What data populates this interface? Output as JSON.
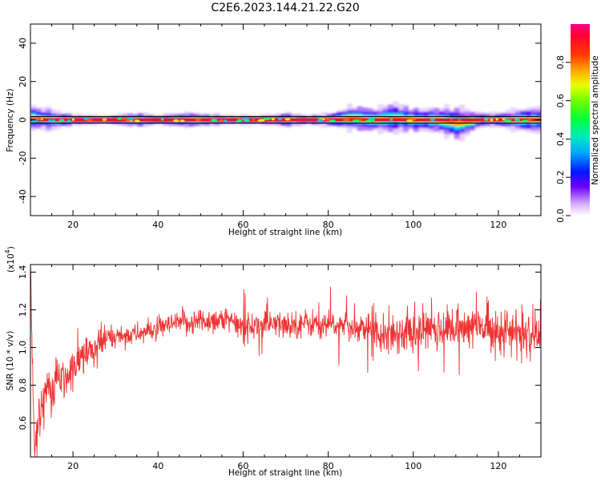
{
  "title": "C2E6.2023.144.21.22.G20",
  "colors": {
    "ridge_red": "#dc1c2e",
    "snr_line": "#ee3333",
    "frame": "#000000",
    "background": "#ffffff"
  },
  "top_panel": {
    "xlabel": "Height of straight line (km)",
    "ylabel": "Frequency (Hz)",
    "xlim": [
      10,
      130
    ],
    "ylim": [
      -50,
      50
    ],
    "xticks": [
      "20",
      "40",
      "60",
      "80",
      "100",
      "120"
    ],
    "xtick_values": [
      20,
      40,
      60,
      80,
      100,
      120
    ],
    "yticks": [
      "40",
      "20",
      "0",
      "-20",
      "-40"
    ],
    "ytick_values": [
      40,
      20,
      0,
      -20,
      -40
    ],
    "colorbar": {
      "label": "Normalized spectral amplitude",
      "ticks": [
        "0.0",
        "0.2",
        "0.4",
        "0.6",
        "0.8"
      ],
      "tick_values": [
        0.0,
        0.2,
        0.4,
        0.6,
        0.8
      ],
      "range": [
        0,
        1
      ]
    }
  },
  "bottom_panel": {
    "xlabel": "Height of straight line (km)",
    "ylabel": "SNR (10 * v/v)",
    "exponent_label": "(x10",
    "exponent_power": "4",
    "exponent_close": ")",
    "xlim": [
      10,
      130
    ],
    "ylim": [
      0.42,
      1.44
    ],
    "xticks": [
      "20",
      "40",
      "60",
      "80",
      "100",
      "120"
    ],
    "xtick_values": [
      20,
      40,
      60,
      80,
      100,
      120
    ],
    "yticks": [
      "1.4",
      "1.2",
      "1.0",
      "0.8",
      "0.6"
    ],
    "ytick_values": [
      1.4,
      1.2,
      1.0,
      0.8,
      0.6
    ]
  },
  "chart_data": [
    {
      "type": "heatmap",
      "title": "C2E6.2023.144.21.22.G20",
      "xlabel": "Height of straight line (km)",
      "ylabel": "Frequency (Hz)",
      "xlim": [
        10,
        130
      ],
      "ylim": [
        -50,
        50
      ],
      "colorbar_label": "Normalized spectral amplitude",
      "description_of_values": "Narrow spectral ridge near 0 Hz across all heights; spreads to about +/-6 Hz near 80-130 km",
      "ridge_x": [
        10,
        15,
        20,
        25,
        30,
        35,
        40,
        45,
        50,
        55,
        60,
        65,
        70,
        75,
        80,
        85,
        90,
        95,
        100,
        105,
        110,
        115,
        120,
        125,
        130
      ],
      "ridge_frequency": [
        1,
        0,
        0,
        0,
        0,
        0,
        0,
        0,
        0,
        0,
        0,
        0,
        0,
        0,
        0,
        1,
        0,
        1,
        0,
        0,
        -2,
        0,
        0,
        0,
        0
      ],
      "spread_hz": [
        5,
        4,
        2,
        2,
        2,
        3,
        2,
        3,
        3,
        2,
        2,
        2,
        3,
        2,
        3,
        6,
        5,
        6,
        5,
        5,
        7,
        3,
        3,
        5,
        5
      ]
    },
    {
      "type": "line",
      "xlabel": "Height of straight line (km)",
      "ylabel": "SNR (10 * v/v)",
      "y_multiplier": "x10^4",
      "xlim": [
        10,
        130
      ],
      "ylim": [
        0.42,
        1.44
      ],
      "x": [
        10,
        11,
        12,
        13,
        14,
        15,
        16,
        18,
        20,
        22,
        25,
        28,
        30,
        35,
        40,
        45,
        50,
        55,
        60,
        65,
        70,
        75,
        80,
        85,
        90,
        95,
        100,
        105,
        110,
        115,
        120,
        125,
        130
      ],
      "values": [
        1.44,
        0.43,
        0.62,
        0.74,
        0.8,
        0.72,
        0.84,
        0.82,
        0.88,
        0.95,
        0.98,
        1.05,
        1.06,
        1.07,
        1.1,
        1.13,
        1.14,
        1.15,
        1.11,
        1.12,
        1.12,
        1.13,
        1.12,
        1.11,
        1.1,
        1.08,
        1.08,
        1.1,
        1.1,
        1.11,
        1.1,
        1.07,
        1.03
      ]
    }
  ]
}
